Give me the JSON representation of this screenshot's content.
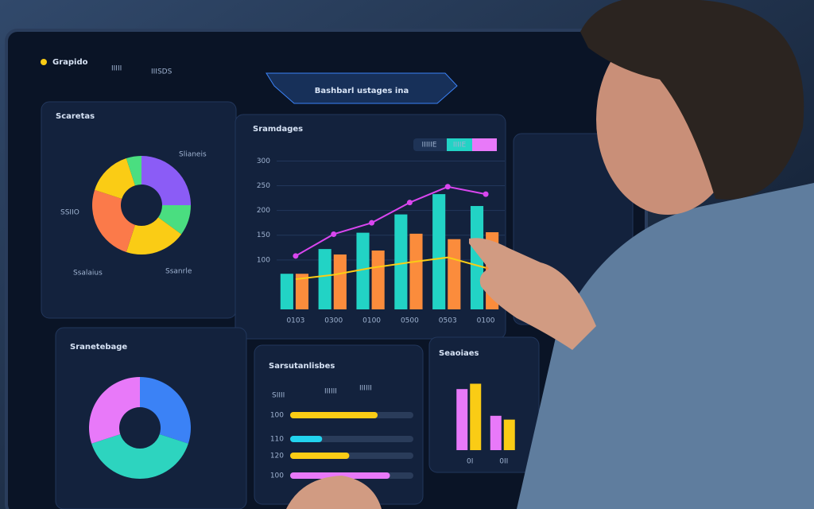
{
  "ui": {
    "logo": "Grapido",
    "tabs": [
      "IIIII",
      "IIISDS"
    ],
    "title": "Bashbarl ustages ina",
    "panel_titles": [
      "Scaretas",
      "Sramdages",
      "Sranetebage",
      "Sarsutanlisbes",
      "Seaoiaes"
    ],
    "pie1_callout": "Slianeis",
    "pie1_side": "SSIIO",
    "pie1_legend": [
      "Ssalaius",
      "Ssanrle"
    ],
    "main_toggles": [
      "IIIIIE",
      "IIIIE"
    ],
    "hbar_tags": [
      "SIIII",
      "IIIIII",
      "IIIIII"
    ]
  },
  "chart_data": [
    {
      "type": "pie",
      "values": [
        25,
        10,
        20,
        25,
        15,
        5
      ],
      "colors": [
        "#8b5cf6",
        "#4ade80",
        "#facc15",
        "#fb7a4a",
        "#facc15",
        "#4ade80"
      ]
    },
    {
      "type": "bar",
      "categories": [
        "0103",
        "0300",
        "0100",
        "0500",
        "0503",
        "0100"
      ],
      "series": [
        {
          "color": "#22d3c5",
          "values": [
            72,
            122,
            155,
            192,
            233,
            209
          ]
        },
        {
          "color": "#fb8c3c",
          "values": [
            72,
            111,
            119,
            153,
            142,
            156
          ]
        },
        {
          "type": "line",
          "color": "#d946ef",
          "values": [
            108,
            152,
            175,
            216,
            248,
            233
          ]
        },
        {
          "type": "line",
          "color": "#facc15",
          "values": [
            61,
            70,
            84,
            95,
            105,
            84
          ]
        }
      ],
      "ylim": [
        0,
        320
      ],
      "yticks": [
        100,
        150,
        200,
        250,
        300
      ]
    },
    {
      "type": "pie",
      "values": [
        30,
        40,
        30
      ],
      "colors": [
        "#3b82f6",
        "#2dd4bf",
        "#e879f9"
      ]
    },
    {
      "type": "hbar",
      "categories": [
        "100",
        "110",
        "120",
        "100"
      ],
      "values": [
        71,
        26,
        48,
        81
      ],
      "colors": [
        "#facc15",
        "#22d3ee",
        "#facc15",
        "#e879f9"
      ],
      "xlim": [
        0,
        100
      ]
    },
    {
      "type": "bar",
      "categories": [
        "0I",
        "0II"
      ],
      "series": [
        {
          "color": "#e879f9",
          "values": [
            80,
            45
          ]
        },
        {
          "color": "#facc15",
          "values": [
            87,
            40
          ]
        }
      ],
      "ylim": [
        0,
        100
      ]
    }
  ]
}
